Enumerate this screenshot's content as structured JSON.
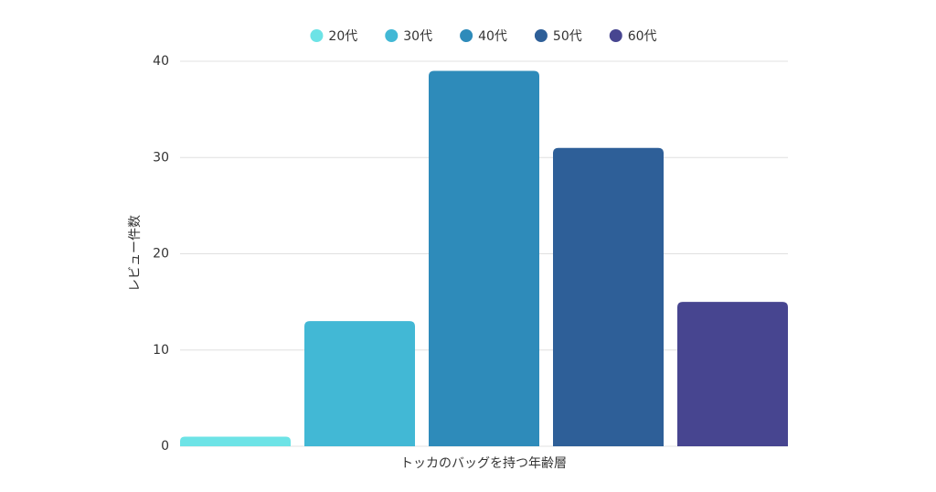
{
  "chart_data": {
    "type": "bar",
    "categories": [
      null
    ],
    "series": [
      {
        "name": "20代",
        "color": "#6de3e6",
        "values": [
          1
        ]
      },
      {
        "name": "30代",
        "color": "#42b8d5",
        "values": [
          13
        ]
      },
      {
        "name": "40代",
        "color": "#2e8bba",
        "values": [
          39
        ]
      },
      {
        "name": "50代",
        "color": "#2e5f98",
        "values": [
          31
        ]
      },
      {
        "name": "60代",
        "color": "#474590",
        "values": [
          15
        ]
      }
    ],
    "x_label": "トッカのバッグを持つ年齢層",
    "y_label": "レビュー件数",
    "ylim": [
      0,
      40
    ],
    "yticks": [
      0,
      10,
      20,
      30,
      40
    ],
    "grid": true,
    "legend": "top"
  }
}
